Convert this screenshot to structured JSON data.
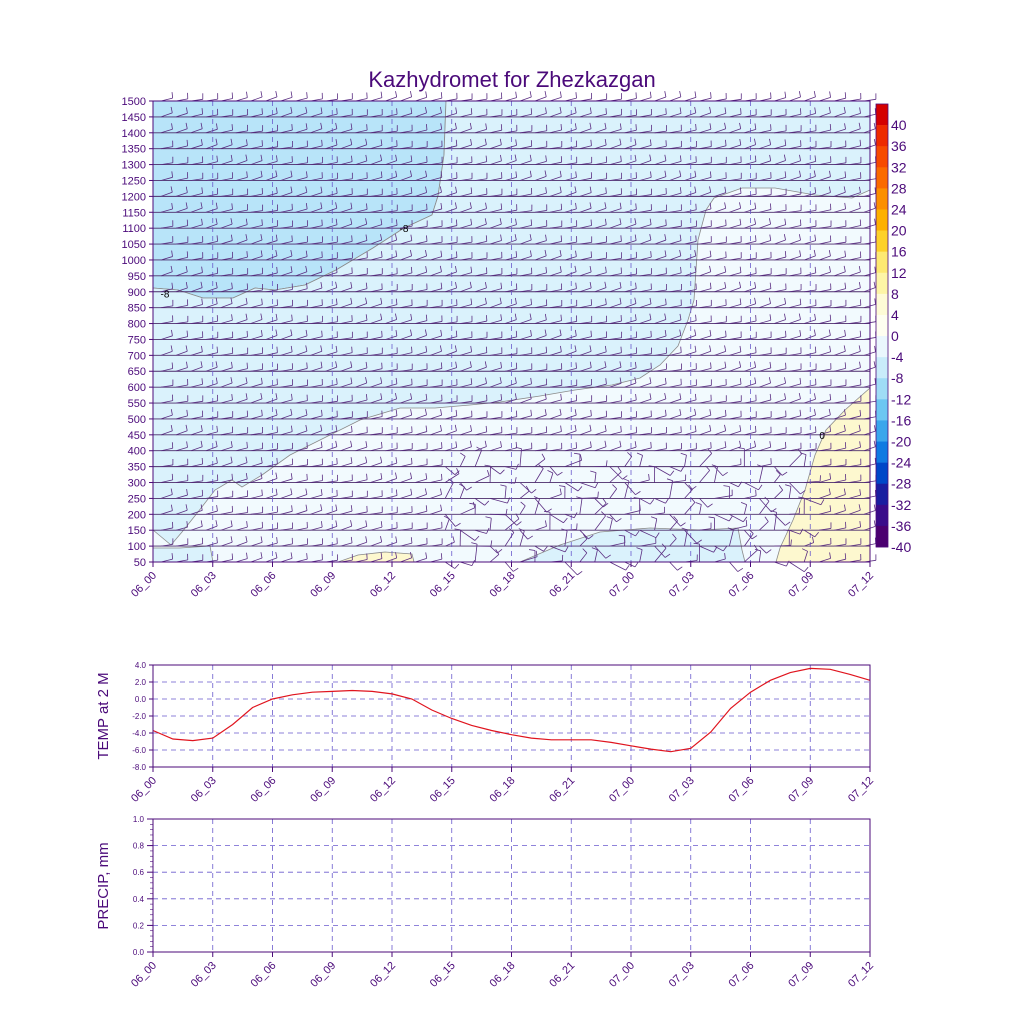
{
  "title": "Kazhydromet for Zhezkazgan",
  "time_labels": [
    "06_00",
    "06_03",
    "06_06",
    "06_09",
    "06_12",
    "06_15",
    "06_18",
    "06_21",
    "07_00",
    "07_03",
    "07_06",
    "07_09",
    "07_12"
  ],
  "colors": {
    "frame": "#4b0a7a",
    "text": "#4b0a7a",
    "temp_line": "#e0141e",
    "grid": "#6a5acd",
    "barb": "#5a2d82",
    "contour": "#8a8a8a"
  },
  "chart_data": [
    {
      "type": "heatmap",
      "name": "vertical-profile",
      "title": "Kazhydromet for Zhezkazgan",
      "xlabel": "",
      "ylabel": "",
      "x_categories": [
        "06_00",
        "06_03",
        "06_06",
        "06_09",
        "06_12",
        "06_15",
        "06_18",
        "06_21",
        "07_00",
        "07_03",
        "07_06",
        "07_09",
        "07_12"
      ],
      "ylim": [
        50,
        1500
      ],
      "y_ticks": [
        50,
        100,
        150,
        200,
        250,
        300,
        350,
        400,
        450,
        500,
        550,
        600,
        650,
        700,
        750,
        800,
        850,
        900,
        950,
        1000,
        1050,
        1100,
        1150,
        1200,
        1250,
        1300,
        1350,
        1400,
        1450,
        1500
      ],
      "contour_labels": [
        {
          "text": "-8",
          "time_index": 0.2,
          "level": 895
        },
        {
          "text": "-8",
          "time_index": 4.2,
          "level": 1100
        },
        {
          "text": "0",
          "time_index": 11.2,
          "level": 450
        }
      ],
      "colorbar": {
        "labels": [
          "40",
          "36",
          "32",
          "28",
          "24",
          "20",
          "16",
          "12",
          "8",
          "4",
          "0",
          "-4",
          "-8",
          "-12",
          "-16",
          "-20",
          "-24",
          "-28",
          "-32",
          "-36",
          "-40"
        ],
        "colors": [
          "#d40000",
          "#ee2a00",
          "#f74a00",
          "#fb6a00",
          "#fc8f00",
          "#fdb000",
          "#fdd12a",
          "#fde972",
          "#fdf5a6",
          "#fefbd6",
          "#fefef0",
          "#eaf7fd",
          "#c9ecfa",
          "#9fdcf6",
          "#6cc6f2",
          "#3aa6ec",
          "#0f7ae2",
          "#0047c8",
          "#1a1ea0",
          "#3a0c8a",
          "#4b0070"
        ]
      }
    },
    {
      "type": "line",
      "name": "temp-at-2m",
      "title": "",
      "xlabel": "",
      "ylabel": "TEMP at 2 M",
      "x": [
        0,
        1,
        2,
        3,
        4,
        5,
        6,
        7,
        8,
        9,
        10,
        11,
        12,
        13,
        14,
        15,
        16,
        17,
        18,
        19,
        20,
        21,
        22,
        23,
        24,
        25,
        26,
        27,
        28,
        29,
        30,
        31,
        32,
        33,
        34,
        35,
        36
      ],
      "series": [
        {
          "name": "TEMP at 2 M",
          "values": [
            -3.7,
            -4.7,
            -4.9,
            -4.6,
            -3.0,
            -1.0,
            0.0,
            0.5,
            0.8,
            0.9,
            1.0,
            0.9,
            0.6,
            0.0,
            -1.3,
            -2.3,
            -3.1,
            -3.7,
            -4.2,
            -4.6,
            -4.8,
            -4.8,
            -4.8,
            -5.1,
            -5.5,
            -5.9,
            -6.2,
            -5.8,
            -3.9,
            -1.1,
            0.8,
            2.2,
            3.1,
            3.6,
            3.5,
            2.9,
            2.2
          ]
        }
      ],
      "ylim": [
        -8,
        4
      ],
      "y_tick_labels": [
        "4.0",
        "2.0",
        "0.0",
        "-2.0",
        "-4.0",
        "-6.0",
        "-8.0"
      ],
      "x_categories": [
        "06_00",
        "06_03",
        "06_06",
        "06_09",
        "06_12",
        "06_15",
        "06_18",
        "06_21",
        "07_00",
        "07_03",
        "07_06",
        "07_09",
        "07_12"
      ]
    },
    {
      "type": "line",
      "name": "precip",
      "title": "",
      "xlabel": "",
      "ylabel": "PRECIP, mm",
      "x": [],
      "series": [],
      "ylim": [
        0,
        1
      ],
      "y_tick_labels": [
        "1.0",
        "0.8",
        "0.6",
        "0.4",
        "0.2",
        "0.0"
      ],
      "x_categories": [
        "06_00",
        "06_03",
        "06_06",
        "06_09",
        "06_12",
        "06_15",
        "06_18",
        "06_21",
        "07_00",
        "07_03",
        "07_06",
        "07_09",
        "07_12"
      ]
    }
  ]
}
